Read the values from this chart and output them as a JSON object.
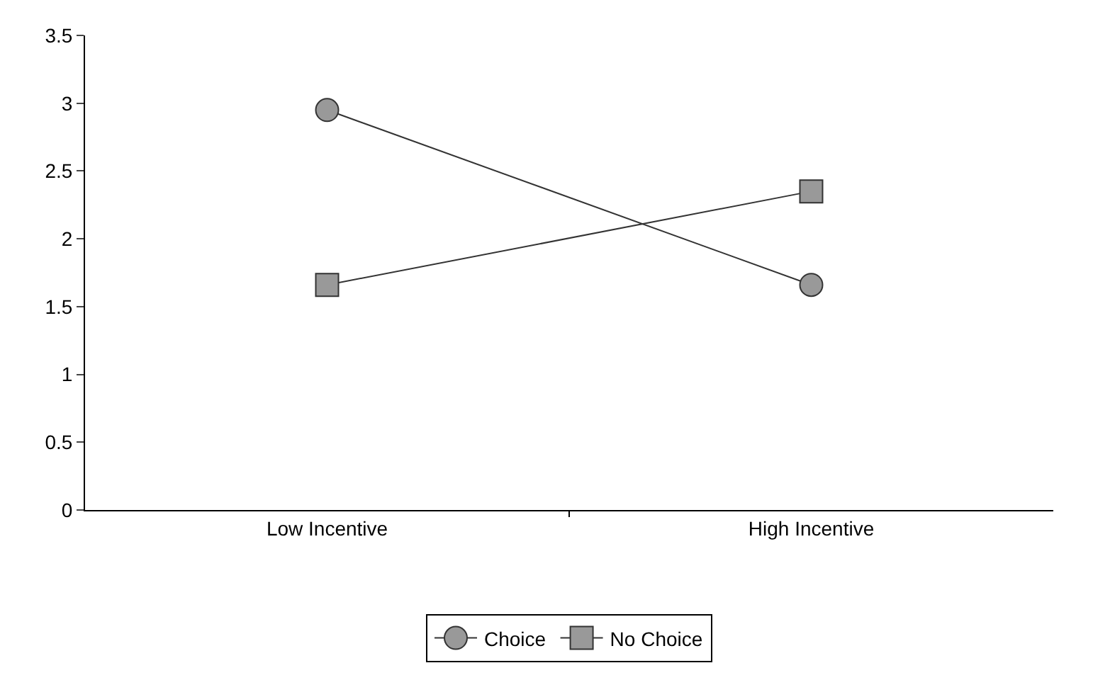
{
  "chart_data": {
    "type": "line",
    "categories": [
      "Low Incentive",
      "High Incentive"
    ],
    "series": [
      {
        "name": "Choice",
        "color": "#999999",
        "marker": "circle",
        "values": [
          2.95,
          1.66
        ]
      },
      {
        "name": "No Choice",
        "color": "#999999",
        "marker": "square",
        "values": [
          1.66,
          2.35
        ]
      }
    ],
    "ylim": [
      0,
      3.5
    ],
    "yticks": [
      0,
      0.5,
      1,
      1.5,
      2,
      2.5,
      3,
      3.5
    ],
    "grid": false,
    "legend": "bottom",
    "line_style": "solid"
  }
}
